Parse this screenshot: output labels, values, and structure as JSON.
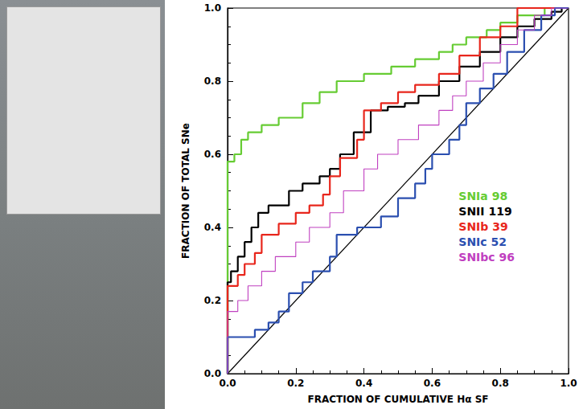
{
  "chart_data": {
    "type": "line",
    "xlabel": "FRACTION OF CUMULATIVE Hα SF",
    "ylabel": "FRACTION OF TOTAL SNe",
    "xlim": [
      0,
      1
    ],
    "ylim": [
      0,
      1
    ],
    "xticks": [
      {
        "value": 0,
        "label": "0.0"
      },
      0.2,
      0.4,
      0.6,
      0.8,
      {
        "value": 1,
        "label": "1.0"
      }
    ],
    "yticks": [
      {
        "value": 0,
        "label": "0.0"
      },
      0.2,
      0.4,
      0.6,
      0.8,
      {
        "value": 1,
        "label": "1.0"
      }
    ],
    "grid": false,
    "legend": "right",
    "line_style": "step",
    "marker": "none",
    "diagonal": {
      "x": [
        0,
        1
      ],
      "values": [
        0,
        1
      ],
      "color": "#000000"
    },
    "series": [
      {
        "name": "SNIa 98",
        "color": "#66cc33",
        "x": [
          0,
          0,
          0.02,
          0.04,
          0.06,
          0.1,
          0.15,
          0.2,
          0.22,
          0.27,
          0.32,
          0.4,
          0.48,
          0.55,
          0.62,
          0.66,
          0.7,
          0.76,
          0.8,
          0.85,
          0.93,
          1
        ],
        "values": [
          0,
          0.58,
          0.6,
          0.64,
          0.66,
          0.68,
          0.7,
          0.7,
          0.74,
          0.77,
          0.8,
          0.82,
          0.84,
          0.86,
          0.88,
          0.9,
          0.92,
          0.94,
          0.96,
          0.98,
          1,
          1
        ]
      },
      {
        "name": "SNII 119",
        "color": "#000000",
        "x": [
          0,
          0,
          0.01,
          0.03,
          0.05,
          0.07,
          0.09,
          0.12,
          0.18,
          0.22,
          0.27,
          0.3,
          0.33,
          0.37,
          0.42,
          0.47,
          0.52,
          0.56,
          0.62,
          0.68,
          0.74,
          0.8,
          0.85,
          0.9,
          0.95,
          0.98,
          1
        ],
        "values": [
          0,
          0.25,
          0.28,
          0.32,
          0.36,
          0.4,
          0.44,
          0.46,
          0.5,
          0.52,
          0.54,
          0.56,
          0.6,
          0.66,
          0.72,
          0.73,
          0.74,
          0.76,
          0.8,
          0.84,
          0.88,
          0.92,
          0.95,
          0.97,
          0.99,
          1,
          1
        ]
      },
      {
        "name": "SNIb 39",
        "color": "#e8261c",
        "x": [
          0,
          0,
          0.03,
          0.05,
          0.08,
          0.1,
          0.15,
          0.2,
          0.24,
          0.28,
          0.3,
          0.33,
          0.38,
          0.4,
          0.45,
          0.5,
          0.55,
          0.62,
          0.68,
          0.74,
          0.8,
          0.85,
          1
        ],
        "values": [
          0,
          0.24,
          0.27,
          0.3,
          0.33,
          0.38,
          0.41,
          0.44,
          0.46,
          0.49,
          0.54,
          0.59,
          0.64,
          0.72,
          0.74,
          0.77,
          0.79,
          0.82,
          0.87,
          0.92,
          0.95,
          1,
          1
        ]
      },
      {
        "name": "SNIc 52",
        "color": "#2b4fb0",
        "x": [
          0,
          0,
          0.08,
          0.12,
          0.15,
          0.18,
          0.22,
          0.25,
          0.3,
          0.32,
          0.38,
          0.45,
          0.5,
          0.55,
          0.58,
          0.6,
          0.65,
          0.68,
          0.7,
          0.74,
          0.78,
          0.82,
          0.87,
          0.92,
          0.96,
          1
        ],
        "values": [
          0,
          0.1,
          0.12,
          0.14,
          0.17,
          0.22,
          0.25,
          0.28,
          0.32,
          0.38,
          0.4,
          0.43,
          0.48,
          0.52,
          0.56,
          0.6,
          0.64,
          0.68,
          0.74,
          0.78,
          0.82,
          0.88,
          0.94,
          0.98,
          1,
          1
        ]
      },
      {
        "name": "SNIbc 96",
        "color": "#c040c0",
        "x": [
          0,
          0,
          0.03,
          0.06,
          0.1,
          0.14,
          0.2,
          0.24,
          0.3,
          0.34,
          0.4,
          0.44,
          0.5,
          0.56,
          0.62,
          0.66,
          0.7,
          0.75,
          0.8,
          0.85,
          0.9,
          0.95,
          1
        ],
        "values": [
          0,
          0.17,
          0.2,
          0.24,
          0.28,
          0.32,
          0.36,
          0.4,
          0.44,
          0.5,
          0.56,
          0.6,
          0.64,
          0.68,
          0.72,
          0.76,
          0.8,
          0.85,
          0.9,
          0.94,
          0.98,
          1,
          1
        ]
      }
    ]
  }
}
